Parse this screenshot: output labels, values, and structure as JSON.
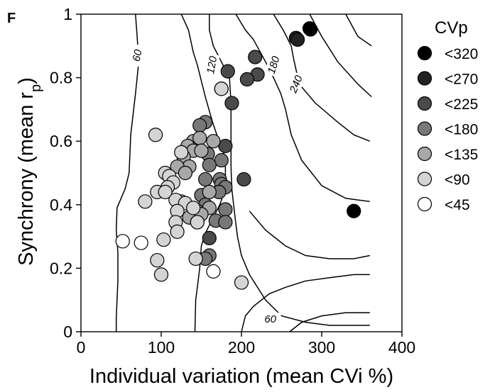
{
  "chart_data": {
    "type": "scatter",
    "panel_letter": "F",
    "xlabel": "Individual variation (mean CVi %)",
    "ylabel_main": "Synchrony (mean r",
    "ylabel_sub": "p",
    "ylabel_close": ")",
    "xlim": [
      0,
      400
    ],
    "ylim": [
      0,
      1
    ],
    "xticks": [
      0,
      100,
      200,
      300,
      400
    ],
    "yticks": [
      0,
      0.2,
      0.4,
      0.6,
      0.8,
      1
    ],
    "xtick_labels": [
      "0",
      "100",
      "200",
      "300",
      "400"
    ],
    "ytick_labels": [
      "0",
      "0.2",
      "0.4",
      "0.6",
      "0.8",
      "1"
    ],
    "grid": false,
    "legend": {
      "title": "CVp",
      "placement": "right",
      "entries": [
        {
          "label": "<320",
          "color": "#000000"
        },
        {
          "label": "<270",
          "color": "#222222"
        },
        {
          "label": "<225",
          "color": "#4a4a4a"
        },
        {
          "label": "<180",
          "color": "#787878"
        },
        {
          "label": "<135",
          "color": "#a8a8a8"
        },
        {
          "label": "<90",
          "color": "#d4d4d4"
        },
        {
          "label": "<45",
          "color": "#ffffff"
        }
      ]
    },
    "contour_labels": [
      {
        "text": "60",
        "x": 70,
        "y": 0.87,
        "rotate": -78
      },
      {
        "text": "120",
        "x": 163,
        "y": 0.84,
        "rotate": -80
      },
      {
        "text": "180",
        "x": 240,
        "y": 0.84,
        "rotate": -72
      },
      {
        "text": "240",
        "x": 268,
        "y": 0.78,
        "rotate": -68
      },
      {
        "text": "60",
        "x": 236,
        "y": 0.04,
        "rotate": 0
      }
    ],
    "contours": [
      [
        [
          68,
          1.0
        ],
        [
          70,
          0.93
        ],
        [
          72,
          0.85
        ],
        [
          68,
          0.75
        ],
        [
          62,
          0.62
        ],
        [
          60,
          0.5
        ],
        [
          55,
          0.45
        ],
        [
          50,
          0.42
        ],
        [
          45,
          0.39
        ],
        [
          44,
          0.32
        ],
        [
          46,
          0.25
        ],
        [
          46,
          0.16
        ],
        [
          45,
          0.1
        ],
        [
          44,
          0.04
        ],
        [
          44,
          0.0
        ]
      ],
      [
        [
          125,
          1.0
        ],
        [
          134,
          0.95
        ],
        [
          140,
          0.88
        ],
        [
          145,
          0.84
        ],
        [
          155,
          0.74
        ],
        [
          164,
          0.66
        ],
        [
          172,
          0.6
        ],
        [
          180,
          0.55
        ],
        [
          180,
          0.45
        ],
        [
          173,
          0.4
        ],
        [
          165,
          0.36
        ],
        [
          155,
          0.31
        ],
        [
          150,
          0.27
        ],
        [
          148,
          0.2
        ],
        [
          145,
          0.14
        ],
        [
          143,
          0.1
        ],
        [
          142,
          0.0
        ]
      ],
      [
        [
          160,
          1.0
        ],
        [
          160,
          0.95
        ],
        [
          165,
          0.9
        ],
        [
          175,
          0.85
        ],
        [
          185,
          0.8
        ],
        [
          187,
          0.72
        ],
        [
          187,
          0.65
        ],
        [
          187,
          0.58
        ],
        [
          187,
          0.52
        ],
        [
          188,
          0.45
        ],
        [
          192,
          0.36
        ],
        [
          195,
          0.3
        ],
        [
          200,
          0.24
        ],
        [
          210,
          0.18
        ],
        [
          230,
          0.1
        ],
        [
          250,
          0.05
        ],
        [
          280,
          0.03
        ],
        [
          310,
          0.02
        ],
        [
          350,
          0.02
        ],
        [
          360,
          0.02
        ]
      ],
      [
        [
          193,
          1.0
        ],
        [
          205,
          0.95
        ],
        [
          215,
          0.92
        ],
        [
          230,
          0.85
        ],
        [
          240,
          0.8
        ],
        [
          249,
          0.75
        ],
        [
          255,
          0.7
        ],
        [
          262,
          0.62
        ],
        [
          275,
          0.54
        ],
        [
          300,
          0.46
        ],
        [
          330,
          0.42
        ],
        [
          360,
          0.41
        ]
      ],
      [
        [
          240,
          1.0
        ],
        [
          252,
          0.95
        ],
        [
          262,
          0.9
        ],
        [
          265,
          0.86
        ],
        [
          272,
          0.78
        ],
        [
          292,
          0.72
        ],
        [
          320,
          0.66
        ],
        [
          340,
          0.62
        ],
        [
          360,
          0.6
        ]
      ],
      [
        [
          285,
          1.0
        ],
        [
          300,
          0.93
        ],
        [
          320,
          0.85
        ],
        [
          345,
          0.78
        ],
        [
          362,
          0.74
        ]
      ],
      [
        [
          330,
          1.0
        ],
        [
          345,
          0.93
        ],
        [
          362,
          0.9
        ]
      ],
      [
        [
          200,
          0.0
        ],
        [
          205,
          0.05
        ],
        [
          215,
          0.08
        ],
        [
          235,
          0.12
        ],
        [
          255,
          0.14
        ],
        [
          280,
          0.16
        ],
        [
          310,
          0.17
        ],
        [
          340,
          0.18
        ],
        [
          360,
          0.18
        ]
      ],
      [
        [
          260,
          0.0
        ],
        [
          275,
          0.03
        ],
        [
          300,
          0.05
        ],
        [
          330,
          0.06
        ],
        [
          360,
          0.06
        ]
      ],
      [
        [
          210,
          0.38
        ],
        [
          230,
          0.32
        ],
        [
          255,
          0.27
        ],
        [
          280,
          0.24
        ],
        [
          310,
          0.23
        ],
        [
          340,
          0.23
        ],
        [
          360,
          0.24
        ]
      ]
    ],
    "series": [
      {
        "name": "<320",
        "color": "#000000",
        "points": [
          [
            285,
            0.955
          ],
          [
            286,
            0.952
          ],
          [
            340,
            0.38
          ]
        ]
      },
      {
        "name": "<270",
        "color": "#222222",
        "points": [
          [
            268,
            0.925
          ],
          [
            270,
            0.92
          ]
        ]
      },
      {
        "name": "<225",
        "color": "#4a4a4a",
        "points": [
          [
            217,
            0.865
          ],
          [
            220,
            0.81
          ],
          [
            207,
            0.795
          ],
          [
            188,
            0.72
          ],
          [
            183,
            0.82
          ],
          [
            180,
            0.585
          ],
          [
            203,
            0.48
          ],
          [
            160,
            0.295
          ]
        ]
      },
      {
        "name": "<180",
        "color": "#787878",
        "points": [
          [
            175,
            0.765
          ],
          [
            155,
            0.66
          ],
          [
            148,
            0.65
          ],
          [
            158,
            0.56
          ],
          [
            175,
            0.54
          ],
          [
            160,
            0.525
          ],
          [
            155,
            0.48
          ],
          [
            173,
            0.48
          ],
          [
            175,
            0.465
          ],
          [
            180,
            0.455
          ],
          [
            172,
            0.44
          ],
          [
            150,
            0.43
          ],
          [
            155,
            0.4
          ],
          [
            180,
            0.385
          ],
          [
            168,
            0.35
          ],
          [
            180,
            0.345
          ],
          [
            160,
            0.24
          ],
          [
            155,
            0.23
          ]
        ]
      },
      {
        "name": "<135",
        "color": "#a8a8a8",
        "points": [
          [
            140,
            0.6
          ],
          [
            148,
            0.61
          ],
          [
            133,
            0.585
          ],
          [
            140,
            0.57
          ],
          [
            128,
            0.55
          ],
          [
            135,
            0.52
          ],
          [
            120,
            0.52
          ],
          [
            165,
            0.6
          ],
          [
            150,
            0.57
          ],
          [
            130,
            0.5
          ],
          [
            125,
            0.41
          ],
          [
            160,
            0.44
          ],
          [
            160,
            0.39
          ],
          [
            145,
            0.38
          ],
          [
            135,
            0.36
          ],
          [
            150,
            0.37
          ],
          [
            145,
            0.345
          ]
        ]
      },
      {
        "name": "<90",
        "color": "#d4d4d4",
        "points": [
          [
            93,
            0.62
          ],
          [
            175,
            0.765
          ],
          [
            125,
            0.565
          ],
          [
            105,
            0.5
          ],
          [
            110,
            0.49
          ],
          [
            115,
            0.47
          ],
          [
            108,
            0.455
          ],
          [
            95,
            0.44
          ],
          [
            105,
            0.44
          ],
          [
            80,
            0.41
          ],
          [
            118,
            0.415
          ],
          [
            130,
            0.405
          ],
          [
            120,
            0.38
          ],
          [
            140,
            0.39
          ],
          [
            118,
            0.345
          ],
          [
            145,
            0.345
          ],
          [
            120,
            0.315
          ],
          [
            103,
            0.29
          ],
          [
            95,
            0.225
          ],
          [
            143,
            0.23
          ],
          [
            100,
            0.18
          ],
          [
            200,
            0.155
          ]
        ]
      },
      {
        "name": "<45",
        "color": "#ffffff",
        "points": [
          [
            52,
            0.285
          ],
          [
            75,
            0.28
          ],
          [
            165,
            0.19
          ]
        ]
      }
    ]
  }
}
